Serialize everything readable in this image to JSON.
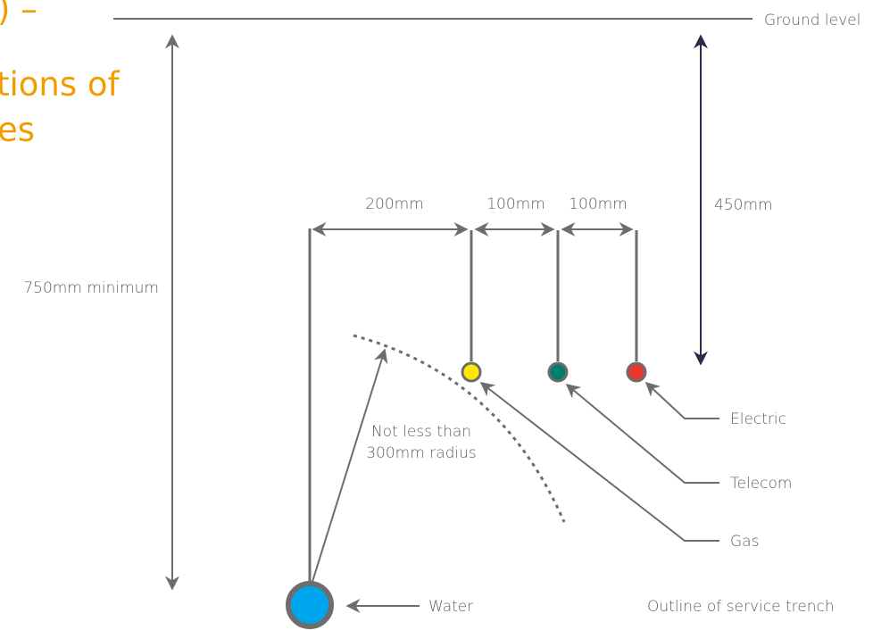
{
  "heading": {
    "line1": ") –",
    "line2": "tions of",
    "line3": "es",
    "color": "#f39c00"
  },
  "labels": {
    "ground_level": "Ground level",
    "depth_total": "750mm minimum",
    "depth_shallow": "450mm",
    "spacing_water_gas": "200mm",
    "spacing_gas_telecom": "100mm",
    "spacing_telecom_electric": "100mm",
    "radius_line1": "Not less than",
    "radius_line2": "300mm radius",
    "electric": "Electric",
    "telecom": "Telecom",
    "gas": "Gas",
    "water": "Water",
    "trench_caption": "Outline of service trench"
  },
  "services": {
    "water_color": "#00a6ed",
    "gas_color": "#ffe800",
    "telecom_color": "#00806a",
    "electric_color": "#e8372d",
    "outline_color": "#6d6d6d",
    "arrow_dark": "#2c2c4a"
  }
}
